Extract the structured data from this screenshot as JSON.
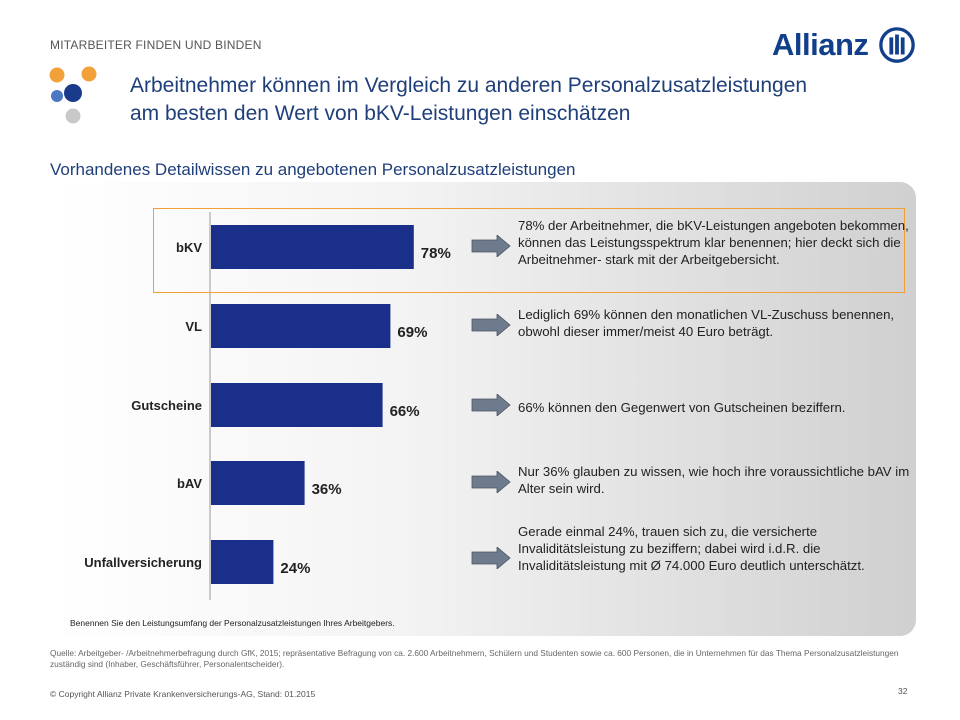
{
  "header": {
    "section_label": "MITARBEITER FINDEN UND BINDEN",
    "brand_name": "Allianz",
    "brand_color": "#123f8c"
  },
  "title": {
    "line1": "Arbeitnehmer können im Vergleich zu anderen Personalzusatzleistungen",
    "line2": "am besten den Wert von bKV-Leistungen einschätzen"
  },
  "subtitle": "Vorhandenes Detailwissen zu angebotenen Personalzusatzleistungen",
  "chart_data": {
    "type": "bar",
    "orientation": "horizontal",
    "categories": [
      "bKV",
      "VL",
      "Gutscheine",
      "bAV",
      "Unfallversicherung"
    ],
    "values": [
      78,
      69,
      66,
      36,
      24
    ],
    "value_labels": [
      "78%",
      "69%",
      "66%",
      "36%",
      "24%"
    ],
    "unit": "%",
    "xlim": [
      0,
      100
    ],
    "bar_color": "#1a2f8a",
    "highlighted_category": "bKV",
    "highlight_color": "#f2a13a",
    "grid": false
  },
  "comments": [
    "78% der Arbeitnehmer, die bKV-Leistungen angeboten bekommen, können das Leistungsspektrum klar benennen; hier deckt sich die Arbeitnehmer- stark mit der Arbeitgebersicht.",
    "Lediglich 69% können den monatlichen VL-Zuschuss benennen, obwohl dieser immer/meist 40 Euro beträgt.",
    "66% können den Gegenwert von Gutscheinen beziffern.",
    "Nur 36% glauben zu wissen, wie hoch ihre voraussichtliche bAV im Alter sein wird.",
    "Gerade einmal 24%, trauen sich zu, die versicherte Invaliditätsleistung zu beziffern; dabei wird i.d.R. die Invaliditätsleistung mit Ø 74.000 Euro deutlich unterschätzt."
  ],
  "question": "Benennen Sie den Leistungsumfang der Personalzusatzleistungen Ihres Arbeitgebers.",
  "footer": {
    "source": "Quelle: Arbeitgeber- /Arbeitnehmerbefragung durch GfK, 2015; repräsentative Befragung von ca. 2.600 Arbeitnehmern, Schülern und Studenten sowie ca. 600 Personen, die in Unternehmen für das Thema Personalzusatzleistungen zuständig sind (Inhaber, Geschäftsführer, Personalentscheider).",
    "copyright": "© Copyright Allianz Private Krankenversicherungs-AG, Stand: 01.2015",
    "page_number": "32"
  }
}
